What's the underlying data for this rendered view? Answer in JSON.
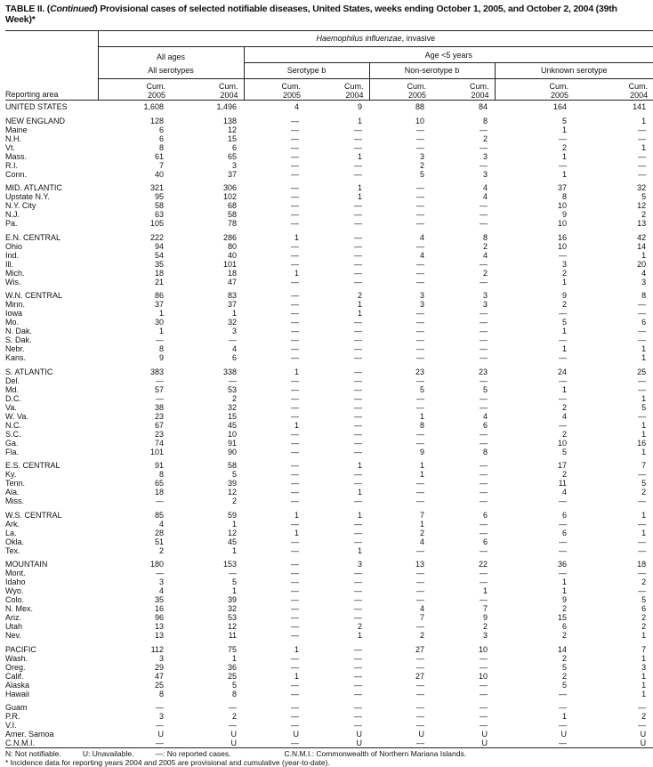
{
  "title": {
    "prefix": "TABLE II. (",
    "italic": "Continued",
    "rest": ") Provisional cases of selected notifiable diseases, United States, weeks ending October 1, 2005, and October 2, 2004 (39th Week)*"
  },
  "header": {
    "disease_italic": "Haemophilus influenzae",
    "disease_rest": ", invasive",
    "all_ages": "All ages",
    "age_lt5": "Age <5 years",
    "all_serotypes": "All serotypes",
    "serotype_b": "Serotype b",
    "non_serotype_b": "Non-serotype b",
    "unknown_serotype": "Unknown serotype",
    "cum": "Cum.",
    "y2005": "2005",
    "y2004": "2004",
    "reporting_area": "Reporting area"
  },
  "rows": [
    {
      "area": "UNITED STATES",
      "v": [
        "1,608",
        "1,496",
        "4",
        "9",
        "88",
        "84",
        "164",
        "141"
      ]
    },
    {
      "gap": true,
      "area": "NEW ENGLAND",
      "v": [
        "128",
        "138",
        "—",
        "1",
        "10",
        "8",
        "5",
        "1"
      ]
    },
    {
      "area": "Maine",
      "v": [
        "6",
        "12",
        "—",
        "—",
        "—",
        "—",
        "1",
        "—"
      ]
    },
    {
      "area": "N.H.",
      "v": [
        "6",
        "15",
        "—",
        "—",
        "—",
        "2",
        "—",
        "—"
      ]
    },
    {
      "area": "Vt.",
      "v": [
        "8",
        "6",
        "—",
        "—",
        "—",
        "—",
        "2",
        "1"
      ]
    },
    {
      "area": "Mass.",
      "v": [
        "61",
        "65",
        "—",
        "1",
        "3",
        "3",
        "1",
        "—"
      ]
    },
    {
      "area": "R.I.",
      "v": [
        "7",
        "3",
        "—",
        "—",
        "2",
        "—",
        "—",
        "—"
      ]
    },
    {
      "area": "Conn.",
      "v": [
        "40",
        "37",
        "—",
        "—",
        "5",
        "3",
        "1",
        "—"
      ]
    },
    {
      "gap": true,
      "area": "MID. ATLANTIC",
      "v": [
        "321",
        "306",
        "—",
        "1",
        "—",
        "4",
        "37",
        "32"
      ]
    },
    {
      "area": "Upstate N.Y.",
      "v": [
        "95",
        "102",
        "—",
        "1",
        "—",
        "4",
        "8",
        "5"
      ]
    },
    {
      "area": "N.Y. City",
      "v": [
        "58",
        "68",
        "—",
        "—",
        "—",
        "—",
        "10",
        "12"
      ]
    },
    {
      "area": "N.J.",
      "v": [
        "63",
        "58",
        "—",
        "—",
        "—",
        "—",
        "9",
        "2"
      ]
    },
    {
      "area": "Pa.",
      "v": [
        "105",
        "78",
        "—",
        "—",
        "—",
        "—",
        "10",
        "13"
      ]
    },
    {
      "gap": true,
      "area": "E.N. CENTRAL",
      "v": [
        "222",
        "286",
        "1",
        "—",
        "4",
        "8",
        "16",
        "42"
      ]
    },
    {
      "area": "Ohio",
      "v": [
        "94",
        "80",
        "—",
        "—",
        "—",
        "2",
        "10",
        "14"
      ]
    },
    {
      "area": "Ind.",
      "v": [
        "54",
        "40",
        "—",
        "—",
        "4",
        "4",
        "—",
        "1"
      ]
    },
    {
      "area": "Ill.",
      "v": [
        "35",
        "101",
        "—",
        "—",
        "—",
        "—",
        "3",
        "20"
      ]
    },
    {
      "area": "Mich.",
      "v": [
        "18",
        "18",
        "1",
        "—",
        "—",
        "2",
        "2",
        "4"
      ]
    },
    {
      "area": "Wis.",
      "v": [
        "21",
        "47",
        "—",
        "—",
        "—",
        "—",
        "1",
        "3"
      ]
    },
    {
      "gap": true,
      "area": "W.N. CENTRAL",
      "v": [
        "86",
        "83",
        "—",
        "2",
        "3",
        "3",
        "9",
        "8"
      ]
    },
    {
      "area": "Minn.",
      "v": [
        "37",
        "37",
        "—",
        "1",
        "3",
        "3",
        "2",
        "—"
      ]
    },
    {
      "area": "Iowa",
      "v": [
        "1",
        "1",
        "—",
        "1",
        "—",
        "—",
        "—",
        "—"
      ]
    },
    {
      "area": "Mo.",
      "v": [
        "30",
        "32",
        "—",
        "—",
        "—",
        "—",
        "5",
        "6"
      ]
    },
    {
      "area": "N. Dak.",
      "v": [
        "1",
        "3",
        "—",
        "—",
        "—",
        "—",
        "1",
        "—"
      ]
    },
    {
      "area": "S. Dak.",
      "v": [
        "—",
        "—",
        "—",
        "—",
        "—",
        "—",
        "—",
        "—"
      ]
    },
    {
      "area": "Nebr.",
      "v": [
        "8",
        "4",
        "—",
        "—",
        "—",
        "—",
        "1",
        "1"
      ]
    },
    {
      "area": "Kans.",
      "v": [
        "9",
        "6",
        "—",
        "—",
        "—",
        "—",
        "—",
        "1"
      ]
    },
    {
      "gap": true,
      "area": "S. ATLANTIC",
      "v": [
        "383",
        "338",
        "1",
        "—",
        "23",
        "23",
        "24",
        "25"
      ]
    },
    {
      "area": "Del.",
      "v": [
        "—",
        "—",
        "—",
        "—",
        "—",
        "—",
        "—",
        "—"
      ]
    },
    {
      "area": "Md.",
      "v": [
        "57",
        "53",
        "—",
        "—",
        "5",
        "5",
        "1",
        "—"
      ]
    },
    {
      "area": "D.C.",
      "v": [
        "—",
        "2",
        "—",
        "—",
        "—",
        "—",
        "—",
        "1"
      ]
    },
    {
      "area": "Va.",
      "v": [
        "38",
        "32",
        "—",
        "—",
        "—",
        "—",
        "2",
        "5"
      ]
    },
    {
      "area": "W. Va.",
      "v": [
        "23",
        "15",
        "—",
        "—",
        "1",
        "4",
        "4",
        "—"
      ]
    },
    {
      "area": "N.C.",
      "v": [
        "67",
        "45",
        "1",
        "—",
        "8",
        "6",
        "—",
        "1"
      ]
    },
    {
      "area": "S.C.",
      "v": [
        "23",
        "10",
        "—",
        "—",
        "—",
        "—",
        "2",
        "1"
      ]
    },
    {
      "area": "Ga.",
      "v": [
        "74",
        "91",
        "—",
        "—",
        "—",
        "—",
        "10",
        "16"
      ]
    },
    {
      "area": "Fla.",
      "v": [
        "101",
        "90",
        "—",
        "—",
        "9",
        "8",
        "5",
        "1"
      ]
    },
    {
      "gap": true,
      "area": "E.S. CENTRAL",
      "v": [
        "91",
        "58",
        "—",
        "1",
        "1",
        "—",
        "17",
        "7"
      ]
    },
    {
      "area": "Ky.",
      "v": [
        "8",
        "5",
        "—",
        "—",
        "1",
        "—",
        "2",
        "—"
      ]
    },
    {
      "area": "Tenn.",
      "v": [
        "65",
        "39",
        "—",
        "—",
        "—",
        "—",
        "11",
        "5"
      ]
    },
    {
      "area": "Ala.",
      "v": [
        "18",
        "12",
        "—",
        "1",
        "—",
        "—",
        "4",
        "2"
      ]
    },
    {
      "area": "Miss.",
      "v": [
        "—",
        "2",
        "—",
        "—",
        "—",
        "—",
        "—",
        "—"
      ]
    },
    {
      "gap": true,
      "area": "W.S. CENTRAL",
      "v": [
        "85",
        "59",
        "1",
        "1",
        "7",
        "6",
        "6",
        "1"
      ]
    },
    {
      "area": "Ark.",
      "v": [
        "4",
        "1",
        "—",
        "—",
        "1",
        "—",
        "—",
        "—"
      ]
    },
    {
      "area": "La.",
      "v": [
        "28",
        "12",
        "1",
        "—",
        "2",
        "—",
        "6",
        "1"
      ]
    },
    {
      "area": "Okla.",
      "v": [
        "51",
        "45",
        "—",
        "—",
        "4",
        "6",
        "—",
        "—"
      ]
    },
    {
      "area": "Tex.",
      "v": [
        "2",
        "1",
        "—",
        "1",
        "—",
        "—",
        "—",
        "—"
      ]
    },
    {
      "gap": true,
      "area": "MOUNTAIN",
      "v": [
        "180",
        "153",
        "—",
        "3",
        "13",
        "22",
        "36",
        "18"
      ]
    },
    {
      "area": "Mont.",
      "v": [
        "—",
        "—",
        "—",
        "—",
        "—",
        "—",
        "—",
        "—"
      ]
    },
    {
      "area": "Idaho",
      "v": [
        "3",
        "5",
        "—",
        "—",
        "—",
        "—",
        "1",
        "2"
      ]
    },
    {
      "area": "Wyo.",
      "v": [
        "4",
        "1",
        "—",
        "—",
        "—",
        "1",
        "1",
        "—"
      ]
    },
    {
      "area": "Colo.",
      "v": [
        "35",
        "39",
        "—",
        "—",
        "—",
        "—",
        "9",
        "5"
      ]
    },
    {
      "area": "N. Mex.",
      "v": [
        "16",
        "32",
        "—",
        "—",
        "4",
        "7",
        "2",
        "6"
      ]
    },
    {
      "area": "Ariz.",
      "v": [
        "96",
        "53",
        "—",
        "—",
        "7",
        "9",
        "15",
        "2"
      ]
    },
    {
      "area": "Utah",
      "v": [
        "13",
        "12",
        "—",
        "2",
        "—",
        "2",
        "6",
        "2"
      ]
    },
    {
      "area": "Nev.",
      "v": [
        "13",
        "11",
        "—",
        "1",
        "2",
        "3",
        "2",
        "1"
      ]
    },
    {
      "gap": true,
      "area": "PACIFIC",
      "v": [
        "112",
        "75",
        "1",
        "—",
        "27",
        "10",
        "14",
        "7"
      ]
    },
    {
      "area": "Wash.",
      "v": [
        "3",
        "1",
        "—",
        "—",
        "—",
        "—",
        "2",
        "1"
      ]
    },
    {
      "area": "Oreg.",
      "v": [
        "29",
        "36",
        "—",
        "—",
        "—",
        "—",
        "5",
        "3"
      ]
    },
    {
      "area": "Calif.",
      "v": [
        "47",
        "25",
        "1",
        "—",
        "27",
        "10",
        "2",
        "1"
      ]
    },
    {
      "area": "Alaska",
      "v": [
        "25",
        "5",
        "—",
        "—",
        "—",
        "—",
        "5",
        "1"
      ]
    },
    {
      "area": "Hawaii",
      "v": [
        "8",
        "8",
        "—",
        "—",
        "—",
        "—",
        "—",
        "1"
      ]
    },
    {
      "gap": true,
      "area": "Guam",
      "v": [
        "—",
        "—",
        "—",
        "—",
        "—",
        "—",
        "—",
        "—"
      ]
    },
    {
      "area": "P.R.",
      "v": [
        "3",
        "2",
        "—",
        "—",
        "—",
        "—",
        "1",
        "2"
      ]
    },
    {
      "area": "V.I.",
      "v": [
        "—",
        "—",
        "—",
        "—",
        "—",
        "—",
        "—",
        "—"
      ]
    },
    {
      "area": "Amer. Samoa",
      "v": [
        "U",
        "U",
        "U",
        "U",
        "U",
        "U",
        "U",
        "U"
      ]
    },
    {
      "area": "C.N.M.I.",
      "v": [
        "—",
        "U",
        "—",
        "U",
        "—",
        "U",
        "—",
        "U"
      ]
    }
  ],
  "footnotes": {
    "n": "N: Not notifiable.",
    "u": "U: Unavailable.",
    "dash": "—: No reported cases.",
    "cnmi": "C.N.M.I.: Commonwealth of Northern Mariana Islands.",
    "star": "* Incidence data for reporting years 2004 and 2005 are provisional and cumulative (year-to-date)."
  }
}
